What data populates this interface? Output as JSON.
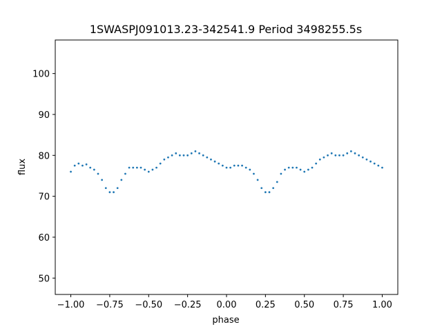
{
  "chart_data": {
    "type": "scatter",
    "title": "1SWASPJ091013.23-342541.9 Period 3498255.5s",
    "xlabel": "phase",
    "ylabel": "flux",
    "xlim": [
      -1.1,
      1.1
    ],
    "ylim": [
      46.0,
      108.2
    ],
    "x_ticks": [
      -1.0,
      -0.75,
      -0.5,
      -0.25,
      0.0,
      0.25,
      0.5,
      0.75,
      1.0
    ],
    "x_tick_labels": [
      "−1.00",
      "−0.75",
      "−0.50",
      "−0.25",
      "0.00",
      "0.25",
      "0.50",
      "0.75",
      "1.00"
    ],
    "y_ticks": [
      50,
      60,
      70,
      80,
      90,
      100
    ],
    "y_tick_labels": [
      "50",
      "60",
      "70",
      "80",
      "90",
      "100"
    ],
    "grid": false,
    "legend": "none",
    "point_color": "#1f77b4",
    "series": [
      {
        "x": [
          -1.0,
          -0.975,
          -0.95,
          -0.925,
          -0.9,
          -0.875,
          -0.85,
          -0.825,
          -0.8,
          -0.775,
          -0.75,
          -0.725,
          -0.7,
          -0.675,
          -0.65,
          -0.625,
          -0.6,
          -0.575,
          -0.55,
          -0.525,
          -0.5,
          -0.475,
          -0.45,
          -0.425,
          -0.4,
          -0.375,
          -0.35,
          -0.325,
          -0.3,
          -0.275,
          -0.25,
          -0.225,
          -0.2,
          -0.175,
          -0.15,
          -0.125,
          -0.1,
          -0.075,
          -0.05,
          -0.025,
          0.0,
          0.025,
          0.05,
          0.075,
          0.1,
          0.125,
          0.15,
          0.175,
          0.2,
          0.225,
          0.25,
          0.275,
          0.3,
          0.325,
          0.35,
          0.375,
          0.4,
          0.425,
          0.45,
          0.475,
          0.5,
          0.525,
          0.55,
          0.575,
          0.6,
          0.625,
          0.65,
          0.675,
          0.7,
          0.725,
          0.75,
          0.775,
          0.8,
          0.825,
          0.85,
          0.875,
          0.9,
          0.925,
          0.95,
          0.975,
          1.0
        ],
        "y": [
          76.0,
          77.5,
          78.0,
          77.5,
          77.8,
          77.0,
          76.5,
          75.5,
          74.0,
          72.0,
          71.0,
          71.0,
          72.0,
          74.0,
          75.5,
          77.0,
          77.0,
          77.0,
          77.0,
          76.5,
          76.0,
          76.5,
          77.0,
          78.0,
          79.0,
          79.5,
          80.0,
          80.5,
          80.0,
          80.0,
          80.0,
          80.5,
          81.0,
          80.5,
          80.0,
          79.5,
          79.0,
          78.5,
          78.0,
          77.5,
          77.0,
          77.0,
          77.5,
          77.5,
          77.5,
          77.0,
          76.5,
          75.5,
          74.0,
          72.0,
          71.0,
          71.0,
          72.0,
          73.5,
          75.5,
          76.5,
          77.0,
          77.0,
          77.0,
          76.5,
          76.0,
          76.5,
          77.0,
          78.0,
          79.0,
          79.5,
          80.0,
          80.5,
          80.0,
          80.0,
          80.0,
          80.5,
          81.0,
          80.5,
          80.0,
          79.5,
          79.0,
          78.5,
          78.0,
          77.5,
          77.0
        ]
      }
    ]
  }
}
